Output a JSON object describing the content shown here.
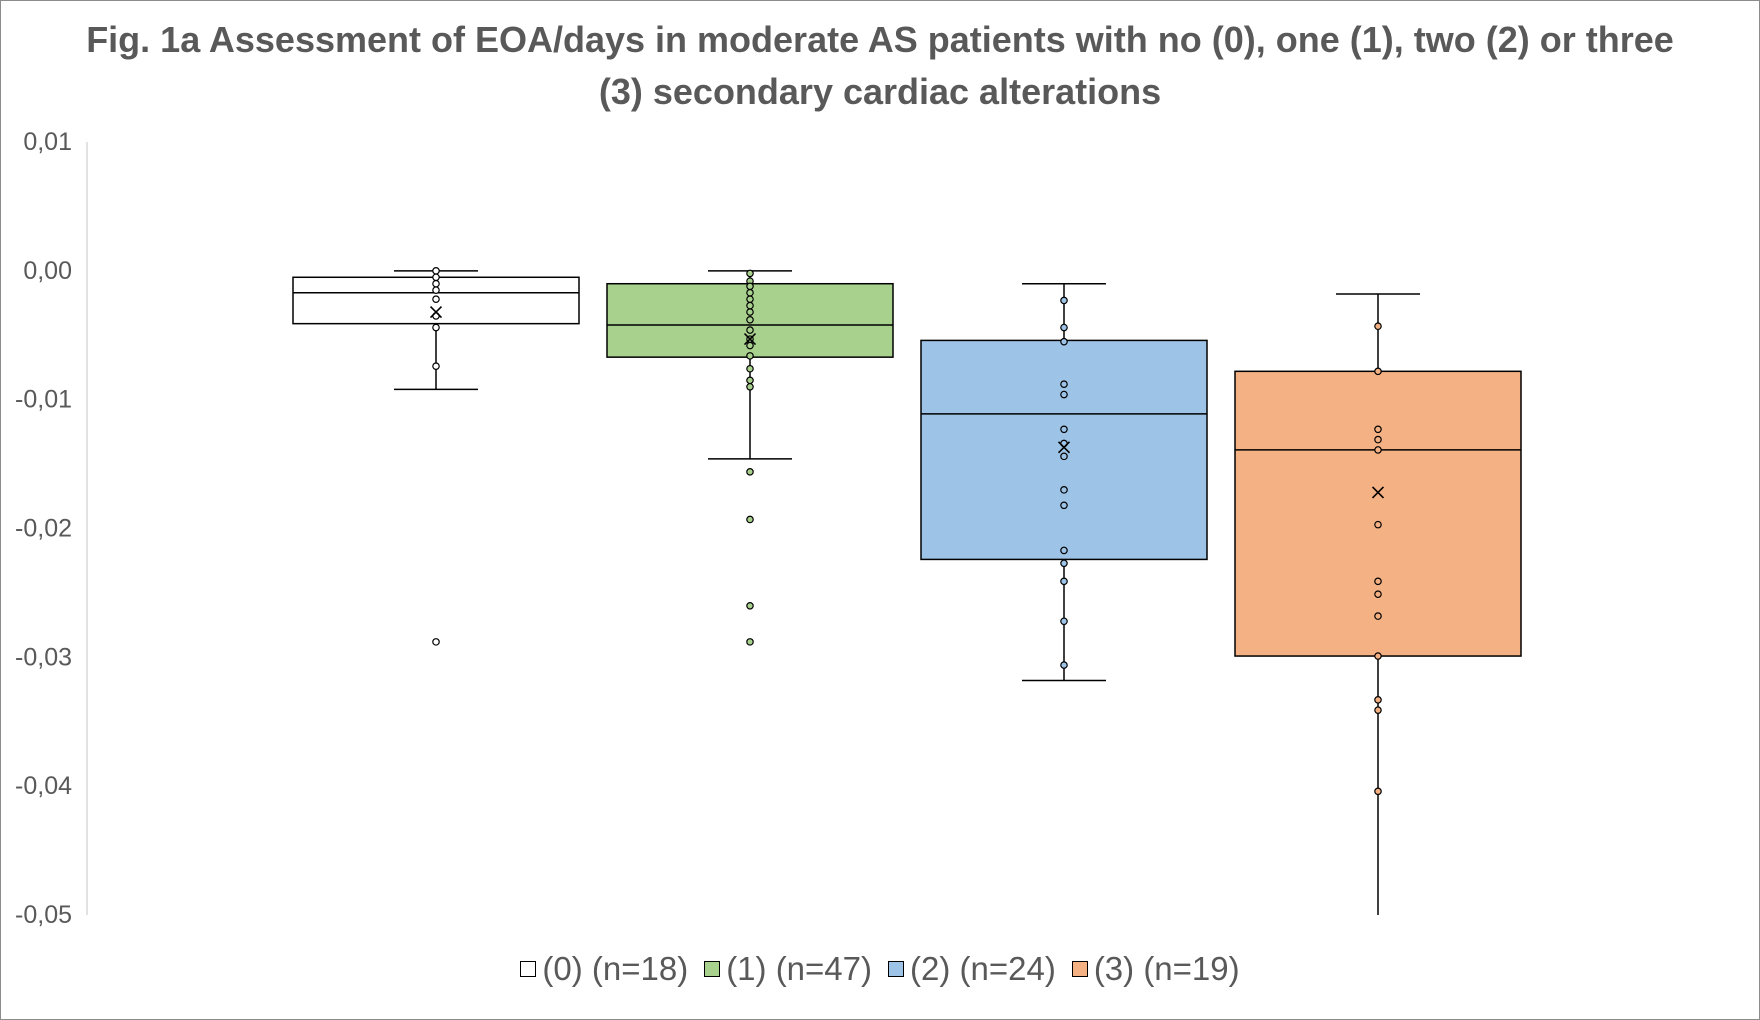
{
  "chart_data": {
    "type": "box",
    "title": "Fig. 1a Assessment of EOA/days in moderate AS patients with no (0), one (1), two (2) or three (3) secondary cardiac alterations",
    "xlabel": "",
    "ylabel": "",
    "ylim": [
      -0.05,
      0.01
    ],
    "yticks": [
      0.01,
      0.0,
      -0.01,
      -0.02,
      -0.03,
      -0.04,
      -0.05
    ],
    "ytick_labels": [
      "0,01",
      "0,00",
      "-0,01",
      "-0,02",
      "-0,03",
      "-0,04",
      "-0,05"
    ],
    "grid": false,
    "legend_position": "bottom",
    "series": [
      {
        "name": "(0) (n=18)",
        "color": "#FFFFFF",
        "whisker_high": 0.0,
        "q3": -0.0005,
        "median": -0.0017,
        "q1": -0.0041,
        "whisker_low": -0.0092,
        "mean": -0.0032,
        "points": [
          0.0,
          -0.0005,
          -0.001,
          -0.0015,
          -0.0022,
          -0.0035,
          -0.0044,
          -0.0074,
          -0.0288
        ]
      },
      {
        "name": "(1) (n=47)",
        "color": "#A9D18E",
        "whisker_high": 0.0,
        "q3": -0.001,
        "median": -0.0042,
        "q1": -0.0067,
        "whisker_low": -0.0146,
        "mean": -0.0053,
        "points": [
          -0.0002,
          -0.0008,
          -0.0012,
          -0.0017,
          -0.0022,
          -0.0027,
          -0.0032,
          -0.0038,
          -0.0046,
          -0.0053,
          -0.0058,
          -0.0066,
          -0.0076,
          -0.0085,
          -0.009,
          -0.0156,
          -0.0193,
          -0.026,
          -0.0288
        ]
      },
      {
        "name": "(2) (n=24)",
        "color": "#9DC3E6",
        "whisker_high": -0.001,
        "q3": -0.0054,
        "median": -0.0111,
        "q1": -0.0224,
        "whisker_low": -0.0318,
        "mean": -0.0137,
        "points": [
          -0.0023,
          -0.0044,
          -0.0055,
          -0.0088,
          -0.0096,
          -0.0123,
          -0.0134,
          -0.0144,
          -0.017,
          -0.0182,
          -0.0217,
          -0.0227,
          -0.0241,
          -0.0272,
          -0.0306
        ]
      },
      {
        "name": "(3) (n=19)",
        "color": "#F4B183",
        "whisker_high": -0.0018,
        "q3": -0.0078,
        "median": -0.0139,
        "q1": -0.0299,
        "whisker_low": -0.05,
        "mean": -0.0172,
        "points": [
          -0.0043,
          -0.0078,
          -0.0123,
          -0.0131,
          -0.0139,
          -0.0197,
          -0.0241,
          -0.0251,
          -0.0268,
          -0.0299,
          -0.0333,
          -0.0341,
          -0.0404
        ]
      }
    ]
  }
}
